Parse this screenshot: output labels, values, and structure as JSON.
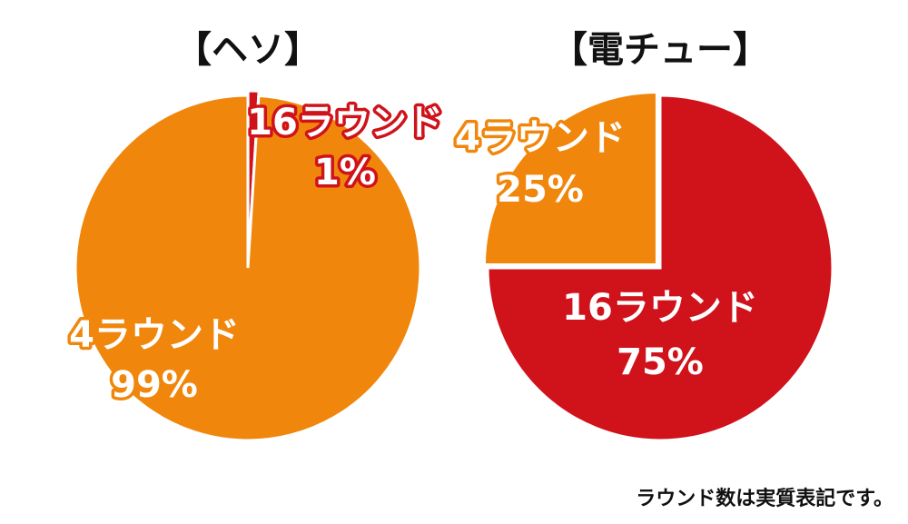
{
  "chart_data": [
    {
      "type": "pie",
      "title": "【ヘソ】",
      "slices": [
        {
          "label": "16ラウンド",
          "value": 1,
          "value_label": "1%",
          "color": "#d0121b"
        },
        {
          "label": "4ラウンド",
          "value": 99,
          "value_label": "99%",
          "color": "#f0870c"
        }
      ],
      "exploded_slice": "16ラウンド"
    },
    {
      "type": "pie",
      "title": "【電チュー】",
      "slices": [
        {
          "label": "16ラウンド",
          "value": 75,
          "value_label": "75%",
          "color": "#d0121b"
        },
        {
          "label": "4ラウンド",
          "value": 25,
          "value_label": "25%",
          "color": "#f0870c"
        }
      ],
      "exploded_slice": "4ラウンド"
    }
  ],
  "footnote": "ラウンド数は実質表記です。",
  "colors": {
    "red": "#d0121b",
    "orange": "#f0870c",
    "text_fill": "#ffffff"
  }
}
